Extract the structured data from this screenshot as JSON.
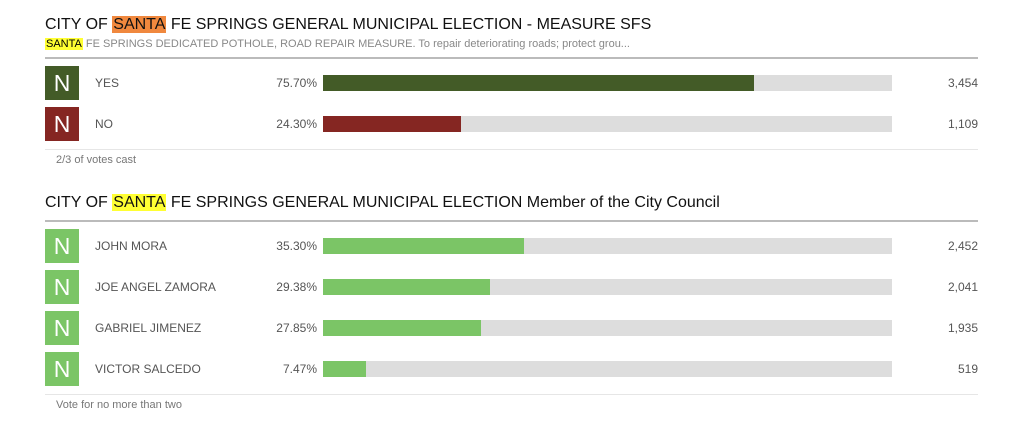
{
  "contests": [
    {
      "title_pre": "CITY OF ",
      "title_hl": "SANTA",
      "title_post": " FE SPRINGS GENERAL MUNICIPAL ELECTION - MEASURE SFS",
      "title_hl_color": "#f0883e",
      "subtitle_hl": "SANTA",
      "subtitle_post": " FE SPRINGS DEDICATED POTHOLE, ROAD REPAIR MEASURE. To repair deteriorating roads; protect grou...",
      "subtitle_hl_color": "#ffff33",
      "choices": [
        {
          "badge": "N",
          "name": "YES",
          "percent": "75.70%",
          "value": 75.7,
          "votes": "3,454",
          "color": "#435b27"
        },
        {
          "badge": "N",
          "name": "NO",
          "percent": "24.30%",
          "value": 24.3,
          "votes": "1,109",
          "color": "#852622"
        }
      ],
      "footer": "2/3 of votes cast"
    },
    {
      "title_pre": "CITY OF ",
      "title_hl": "SANTA",
      "title_post": " FE SPRINGS GENERAL MUNICIPAL ELECTION Member of the City Council",
      "title_hl_color": "#ffff33",
      "choices": [
        {
          "badge": "N",
          "name": "JOHN MORA",
          "percent": "35.30%",
          "value": 35.3,
          "votes": "2,452",
          "color": "#7bc566"
        },
        {
          "badge": "N",
          "name": "JOE ANGEL ZAMORA",
          "percent": "29.38%",
          "value": 29.38,
          "votes": "2,041",
          "color": "#7bc566"
        },
        {
          "badge": "N",
          "name": "GABRIEL JIMENEZ",
          "percent": "27.85%",
          "value": 27.85,
          "votes": "1,935",
          "color": "#7bc566"
        },
        {
          "badge": "N",
          "name": "VICTOR SALCEDO",
          "percent": "7.47%",
          "value": 7.47,
          "votes": "519",
          "color": "#7bc566"
        }
      ],
      "footer": "Vote for no more than two"
    }
  ]
}
